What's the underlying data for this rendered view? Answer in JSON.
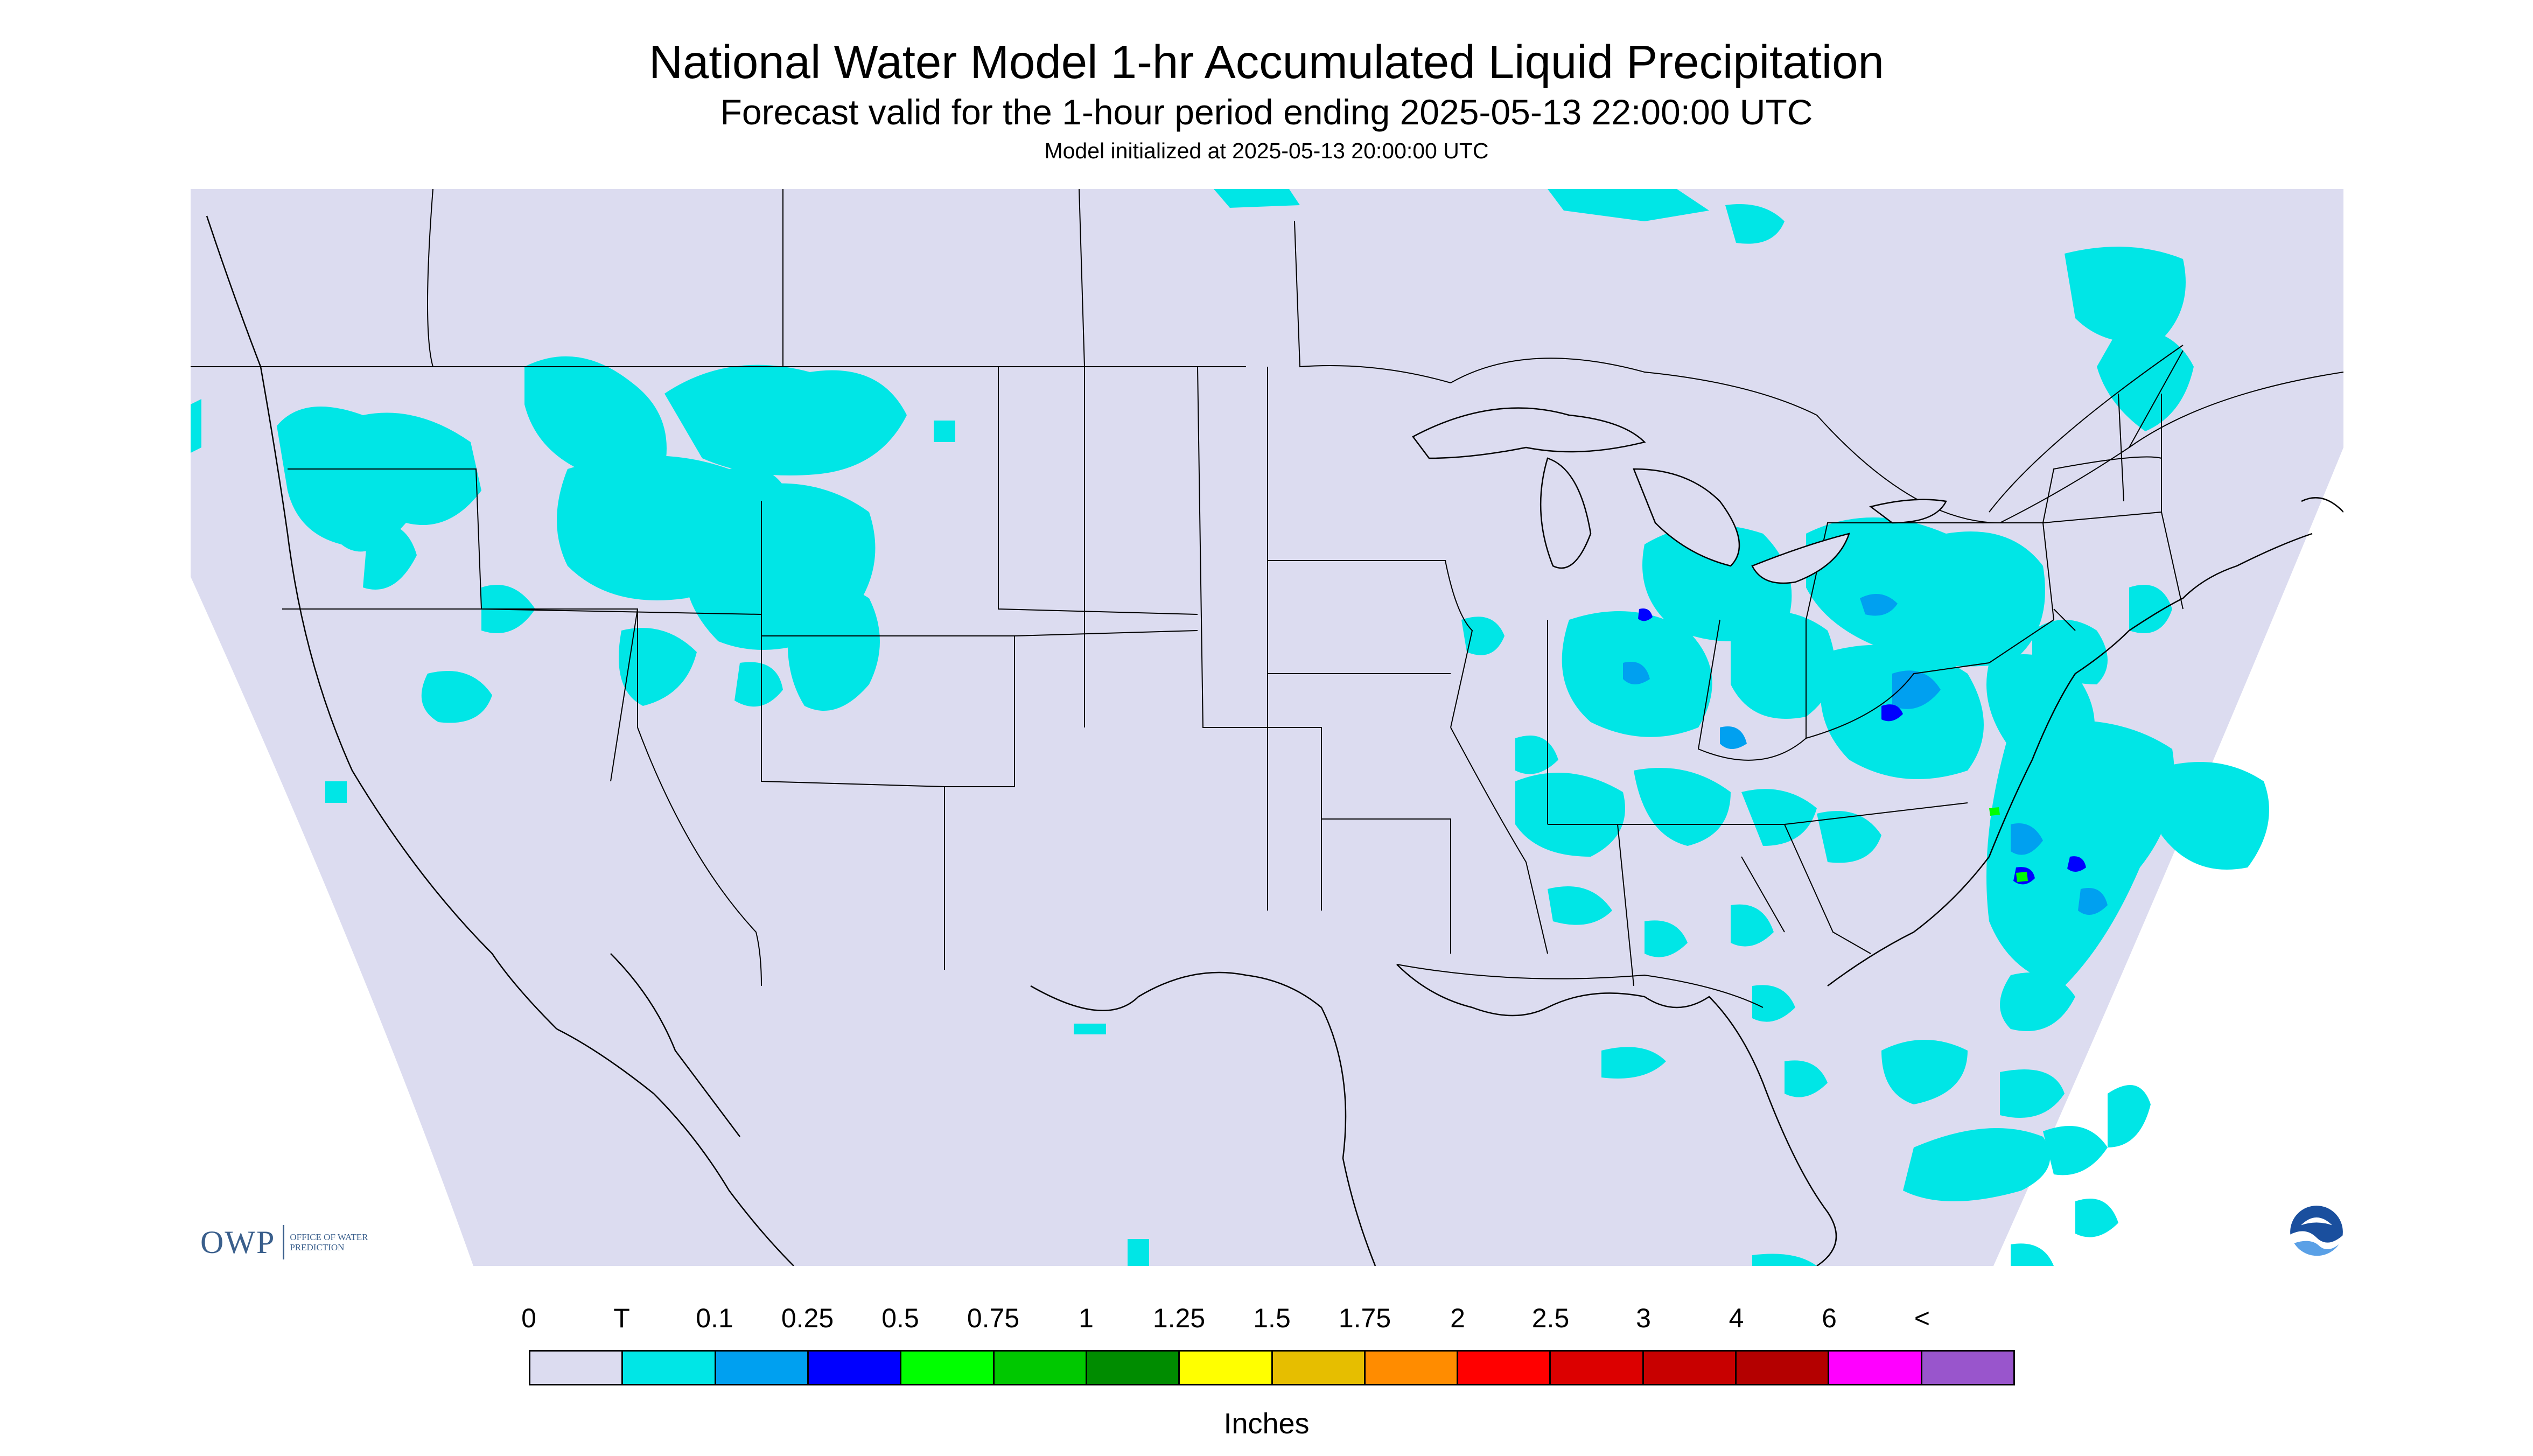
{
  "header": {
    "title": "National Water Model 1-hr Accumulated Liquid Precipitation",
    "subtitle": "Forecast valid for the 1-hour period ending 2025-05-13 22:00:00 UTC",
    "init": "Model initialized at 2025-05-13 20:00:00 UTC"
  },
  "branding": {
    "owp_main": "OWP",
    "owp_sub": "OFFICE OF WATER PREDICTION",
    "noaa_logo": "noaa-logo-icon"
  },
  "colors": {
    "background": "#dcdcf0",
    "boundary": "#000000",
    "trace": "#00e6e6",
    "light_blue": "#00a0f0",
    "blue": "#0000ff",
    "green": "#00ff00"
  },
  "legend": {
    "labels": [
      "0",
      "T",
      "0.1",
      "0.25",
      "0.5",
      "0.75",
      "1",
      "1.25",
      "1.5",
      "1.75",
      "2",
      "2.5",
      "3",
      "4",
      "6",
      "<"
    ],
    "colors": [
      "#dcdcf0",
      "#00e6e6",
      "#00a0f0",
      "#0000ff",
      "#00ff00",
      "#00c800",
      "#008c00",
      "#ffff00",
      "#e6be00",
      "#ff8c00",
      "#ff0000",
      "#dc0000",
      "#c80000",
      "#b40000",
      "#ff00ff",
      "#9955cc"
    ],
    "units": "Inches"
  }
}
